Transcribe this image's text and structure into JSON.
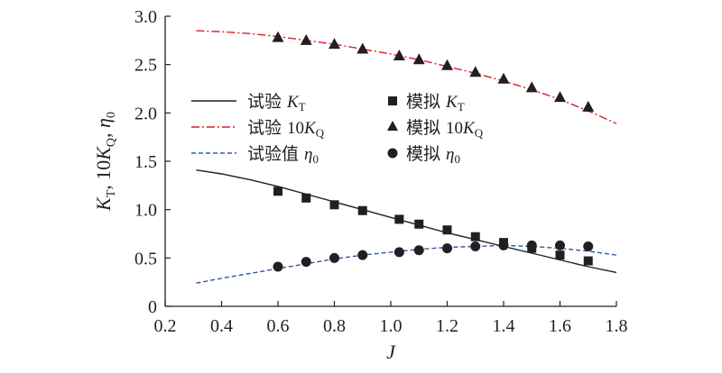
{
  "chart_data": {
    "type": "line",
    "xlabel": "J",
    "ylabel": "KT, 10KQ, η0",
    "xlim": [
      0.2,
      1.8
    ],
    "ylim": [
      0.0,
      3.0
    ],
    "xticks": [
      "0.2",
      "0.4",
      "0.6",
      "0.8",
      "1.0",
      "1.2",
      "1.4",
      "1.6",
      "1.8"
    ],
    "yticks": [
      "0",
      "0.5",
      "1.0",
      "1.5",
      "2.0",
      "2.5",
      "3.0"
    ],
    "grid": false,
    "legend_position": "center-left",
    "legend": {
      "exp_kt": "试验 KT",
      "exp_kq": "试验 10KQ",
      "exp_eta": "试验值 η0",
      "sim_kt": "模拟 KT",
      "sim_kq": "模拟 10KQ",
      "sim_eta": "模拟 η0"
    },
    "lines": [
      {
        "name": "试验 KT",
        "color": "#231f20",
        "style": "solid",
        "x": [
          0.31,
          0.4,
          0.5,
          0.6,
          0.7,
          0.8,
          0.9,
          1.0,
          1.1,
          1.2,
          1.3,
          1.4,
          1.5,
          1.6,
          1.7,
          1.8
        ],
        "y": [
          1.41,
          1.37,
          1.31,
          1.24,
          1.16,
          1.08,
          1.0,
          0.92,
          0.84,
          0.76,
          0.69,
          0.62,
          0.55,
          0.48,
          0.41,
          0.35
        ]
      },
      {
        "name": "试验 10KQ",
        "color": "#d71f2b",
        "style": "dashdot",
        "x": [
          0.31,
          0.4,
          0.5,
          0.6,
          0.7,
          0.8,
          0.9,
          1.0,
          1.1,
          1.2,
          1.3,
          1.4,
          1.5,
          1.6,
          1.7,
          1.8
        ],
        "y": [
          2.85,
          2.84,
          2.82,
          2.79,
          2.75,
          2.71,
          2.66,
          2.61,
          2.55,
          2.48,
          2.41,
          2.33,
          2.24,
          2.14,
          2.02,
          1.89
        ]
      },
      {
        "name": "试验值 η0",
        "color": "#2c59a8",
        "style": "dashed",
        "x": [
          0.31,
          0.4,
          0.5,
          0.6,
          0.7,
          0.8,
          0.9,
          1.0,
          1.1,
          1.2,
          1.3,
          1.4,
          1.5,
          1.6,
          1.7,
          1.8
        ],
        "y": [
          0.24,
          0.29,
          0.34,
          0.39,
          0.44,
          0.49,
          0.53,
          0.56,
          0.59,
          0.61,
          0.62,
          0.63,
          0.62,
          0.6,
          0.57,
          0.53
        ]
      }
    ],
    "markers": [
      {
        "name": "模拟 KT",
        "marker": "square",
        "color": "#231f20",
        "x": [
          0.6,
          0.7,
          0.8,
          0.9,
          1.03,
          1.1,
          1.2,
          1.3,
          1.4,
          1.5,
          1.6,
          1.7
        ],
        "y": [
          1.19,
          1.12,
          1.05,
          0.99,
          0.9,
          0.85,
          0.79,
          0.72,
          0.66,
          0.6,
          0.53,
          0.47
        ]
      },
      {
        "name": "模拟 10KQ",
        "marker": "triangle",
        "color": "#231f20",
        "x": [
          0.6,
          0.7,
          0.8,
          0.9,
          1.03,
          1.1,
          1.2,
          1.3,
          1.4,
          1.5,
          1.6,
          1.7
        ],
        "y": [
          2.78,
          2.75,
          2.71,
          2.66,
          2.59,
          2.55,
          2.49,
          2.42,
          2.35,
          2.26,
          2.16,
          2.06
        ]
      },
      {
        "name": "模拟 η0",
        "marker": "circle",
        "color": "#231f20",
        "x": [
          0.6,
          0.7,
          0.8,
          0.9,
          1.03,
          1.1,
          1.2,
          1.3,
          1.4,
          1.5,
          1.6,
          1.7
        ],
        "y": [
          0.41,
          0.46,
          0.5,
          0.53,
          0.56,
          0.58,
          0.6,
          0.62,
          0.63,
          0.63,
          0.63,
          0.62
        ]
      }
    ]
  }
}
